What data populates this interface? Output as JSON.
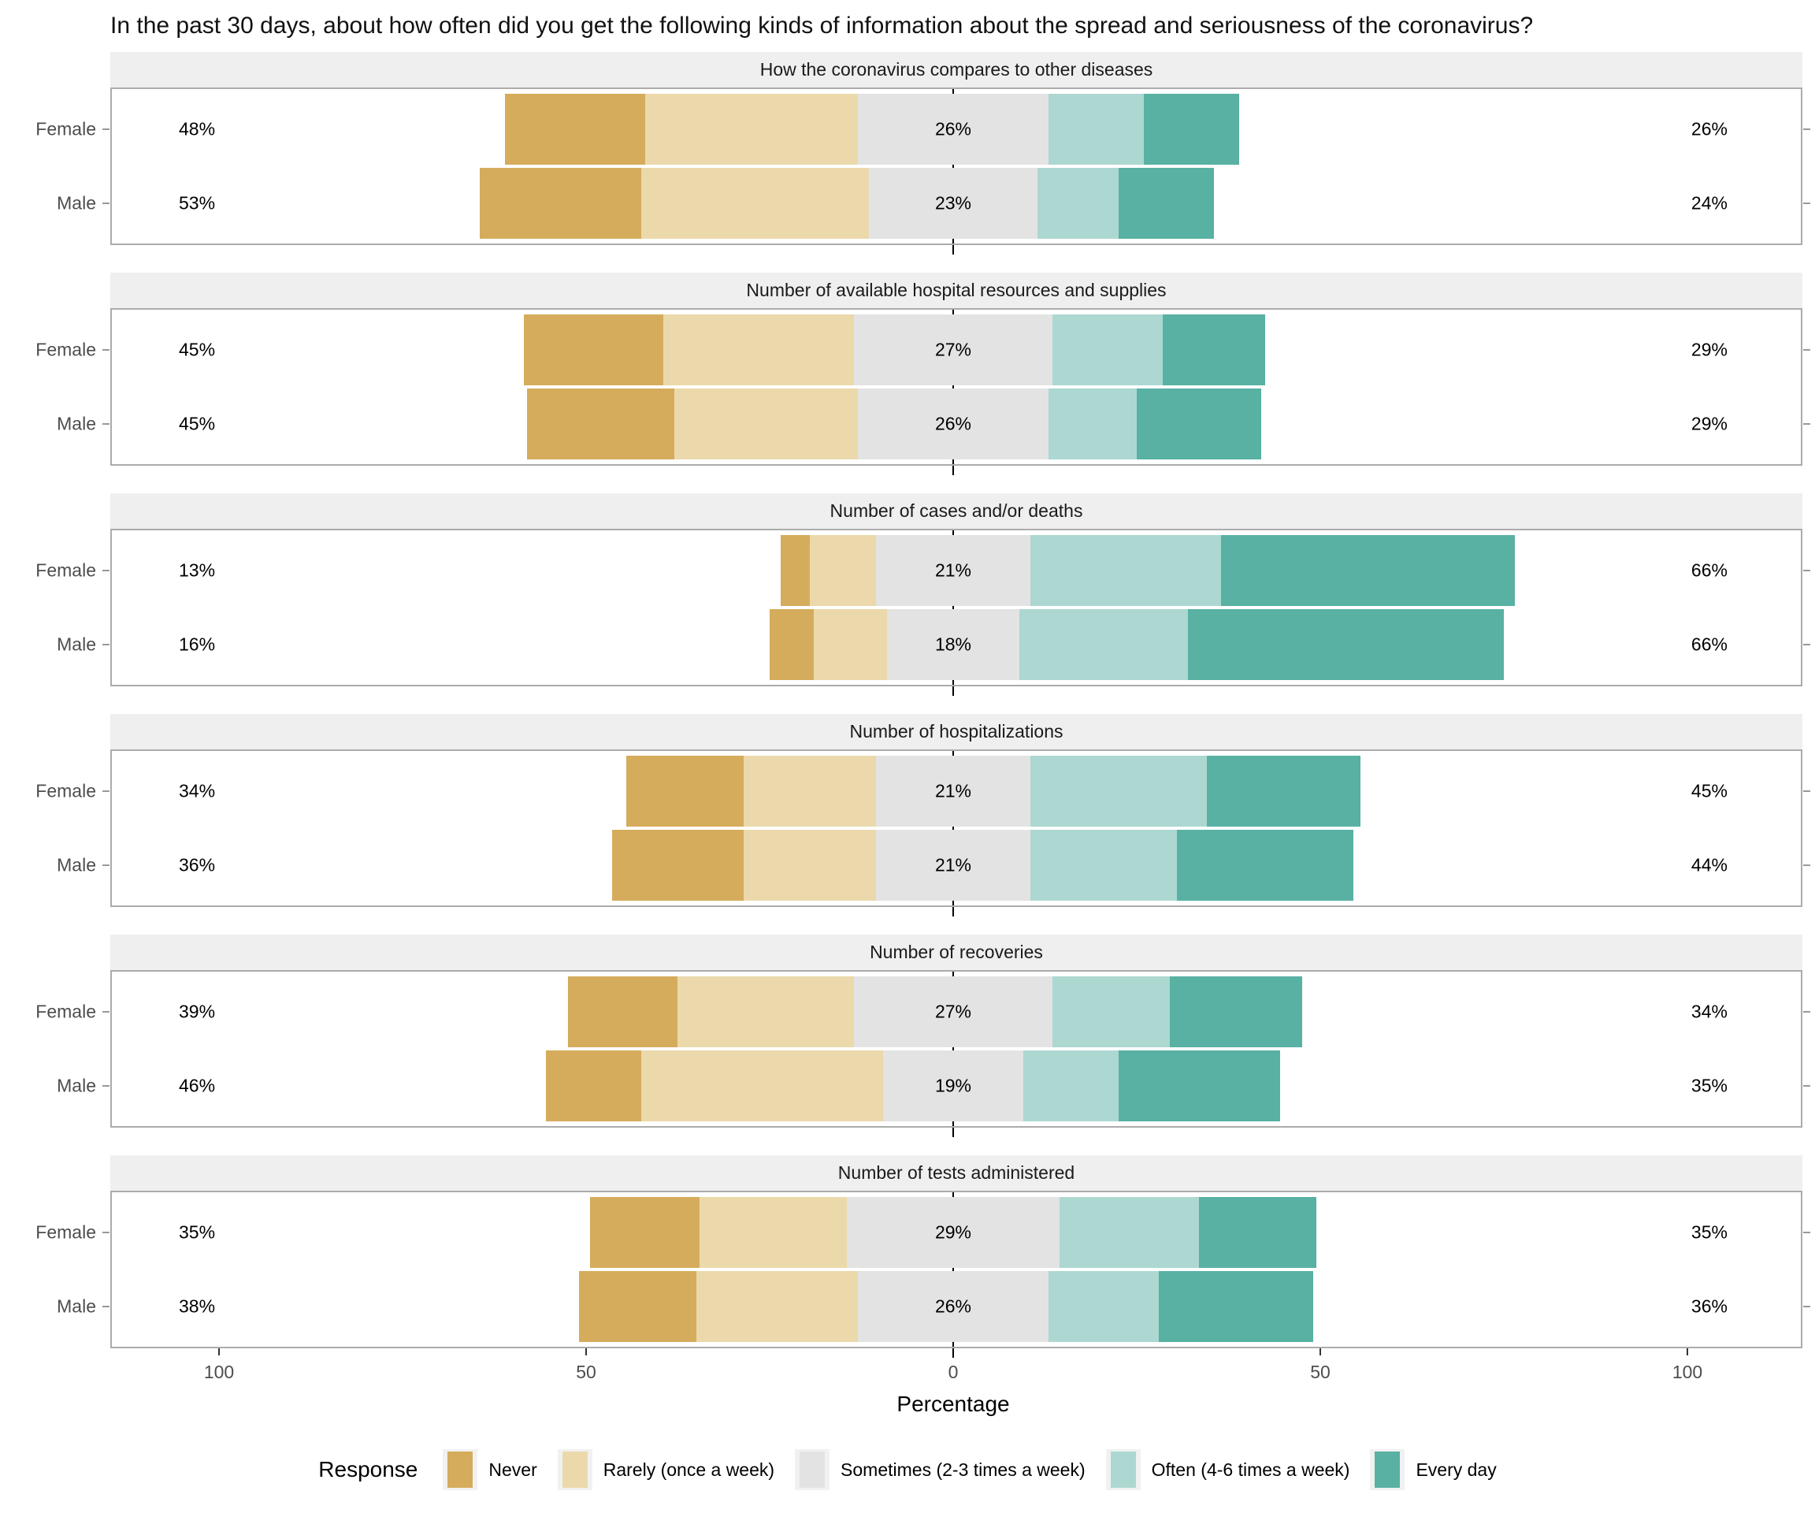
{
  "title": "In the past 30 days, about how often did you get the following kinds of information about the spread and seriousness of the coronavirus?",
  "axis": {
    "xlabel": "Percentage",
    "tick_values": [
      -100,
      -50,
      0,
      50,
      100
    ],
    "tick_labels": [
      "100",
      "50",
      "0",
      "50",
      "100"
    ]
  },
  "legend": {
    "title": "Response",
    "items": [
      {
        "label": "Never",
        "color": "#D5AC5C"
      },
      {
        "label": "Rarely (once a week)",
        "color": "#EBD9AB"
      },
      {
        "label": "Sometimes (2-3 times a week)",
        "color": "#E3E3E3"
      },
      {
        "label": "Often (4-6 times a week)",
        "color": "#ACD8D1"
      },
      {
        "label": "Every day",
        "color": "#58B1A3"
      }
    ]
  },
  "chart_data": {
    "type": "diverging_stacked_bar",
    "title": "In the past 30 days, about how often did you get the following kinds of information about the spread and seriousness of the coronavirus?",
    "xlabel": "Percentage",
    "x_ticks": [
      -100,
      -50,
      0,
      50,
      100
    ],
    "xlim": [
      -115,
      115
    ],
    "legend_position": "bottom",
    "categories": [
      "Never",
      "Rarely (once a week)",
      "Sometimes (2-3 times a week)",
      "Often (4-6 times a week)",
      "Every day"
    ],
    "colors": [
      "#D5AC5C",
      "#EBD9AB",
      "#E3E3E3",
      "#ACD8D1",
      "#58B1A3"
    ],
    "centering": "middle category (Sometimes) straddles zero; left label = Never+Rarely, center label = Sometimes, right label = Often+Every day",
    "panels": [
      {
        "title": "How the coronavirus compares to other diseases",
        "rows": [
          {
            "group": "Female",
            "values": [
              19,
              29,
              26,
              13,
              13
            ],
            "left_label": "48%",
            "center_label": "26%",
            "right_label": "26%"
          },
          {
            "group": "Male",
            "values": [
              22,
              31,
              23,
              11,
              13
            ],
            "left_label": "53%",
            "center_label": "23%",
            "right_label": "24%"
          }
        ]
      },
      {
        "title": "Number of available hospital resources and supplies",
        "rows": [
          {
            "group": "Female",
            "values": [
              19,
              26,
              27,
              15,
              14
            ],
            "left_label": "45%",
            "center_label": "27%",
            "right_label": "29%"
          },
          {
            "group": "Male",
            "values": [
              20,
              25,
              26,
              12,
              17
            ],
            "left_label": "45%",
            "center_label": "26%",
            "right_label": "29%"
          }
        ]
      },
      {
        "title": "Number of cases and/or deaths",
        "rows": [
          {
            "group": "Female",
            "values": [
              4,
              9,
              21,
              26,
              40
            ],
            "left_label": "13%",
            "center_label": "21%",
            "right_label": "66%"
          },
          {
            "group": "Male",
            "values": [
              6,
              10,
              18,
              23,
              43
            ],
            "left_label": "16%",
            "center_label": "18%",
            "right_label": "66%"
          }
        ]
      },
      {
        "title": "Number of hospitalizations",
        "rows": [
          {
            "group": "Female",
            "values": [
              16,
              18,
              21,
              24,
              21
            ],
            "left_label": "34%",
            "center_label": "21%",
            "right_label": "45%"
          },
          {
            "group": "Male",
            "values": [
              18,
              18,
              21,
              20,
              24
            ],
            "left_label": "36%",
            "center_label": "21%",
            "right_label": "44%"
          }
        ]
      },
      {
        "title": "Number of recoveries",
        "rows": [
          {
            "group": "Female",
            "values": [
              15,
              24,
              27,
              16,
              18
            ],
            "left_label": "39%",
            "center_label": "27%",
            "right_label": "34%"
          },
          {
            "group": "Male",
            "values": [
              13,
              33,
              19,
              13,
              22
            ],
            "left_label": "46%",
            "center_label": "19%",
            "right_label": "35%"
          }
        ]
      },
      {
        "title": "Number of tests administered",
        "rows": [
          {
            "group": "Female",
            "values": [
              15,
              20,
              29,
              19,
              16
            ],
            "left_label": "35%",
            "center_label": "29%",
            "right_label": "35%"
          },
          {
            "group": "Male",
            "values": [
              16,
              22,
              26,
              15,
              21
            ],
            "left_label": "38%",
            "center_label": "26%",
            "right_label": "36%"
          }
        ]
      }
    ]
  }
}
